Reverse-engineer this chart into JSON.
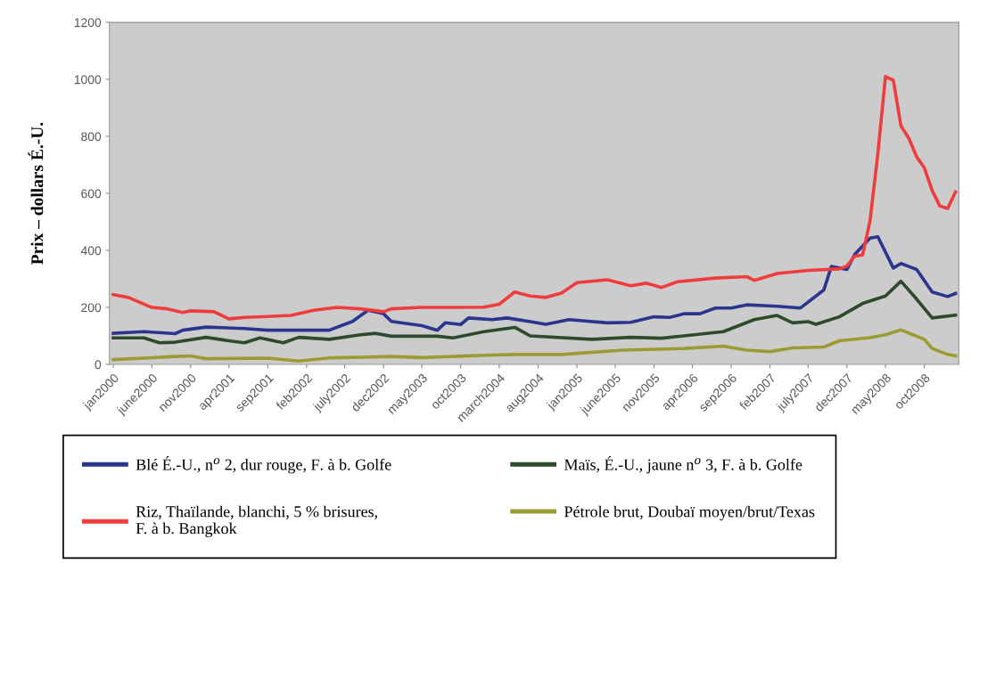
{
  "chart_data": {
    "type": "line",
    "ylabel": "Prix – dollars É.-U.",
    "xlim": [
      "1999-12-17",
      "2009-02-14"
    ],
    "ylim": [
      0,
      1200
    ],
    "yticks": [
      0,
      200,
      400,
      600,
      800,
      1000,
      1200
    ],
    "xticks": [
      {
        "value": "2000-01",
        "label": "jan2000"
      },
      {
        "value": "2000-06",
        "label": "june2000"
      },
      {
        "value": "2000-11",
        "label": "nov2000"
      },
      {
        "value": "2001-04",
        "label": "apr2001"
      },
      {
        "value": "2001-09",
        "label": "sep2001"
      },
      {
        "value": "2002-02",
        "label": "feb2002"
      },
      {
        "value": "2002-07",
        "label": "july2002"
      },
      {
        "value": "2002-12",
        "label": "dec2002"
      },
      {
        "value": "2003-05",
        "label": "may2003"
      },
      {
        "value": "2003-10",
        "label": "oct2003"
      },
      {
        "value": "2004-03",
        "label": "march2004"
      },
      {
        "value": "2004-08",
        "label": "aug2004"
      },
      {
        "value": "2005-01",
        "label": "jan2005"
      },
      {
        "value": "2005-06",
        "label": "june2005"
      },
      {
        "value": "2005-11",
        "label": "nov2005"
      },
      {
        "value": "2006-04",
        "label": "apr2006"
      },
      {
        "value": "2006-09",
        "label": "sep2006"
      },
      {
        "value": "2007-02",
        "label": "feb2007"
      },
      {
        "value": "2007-07",
        "label": "july2007"
      },
      {
        "value": "2007-12",
        "label": "dec2007"
      },
      {
        "value": "2008-05",
        "label": "may2008"
      },
      {
        "value": "2008-10",
        "label": "oct2008"
      }
    ],
    "grid": false,
    "legend": "bottom",
    "marker": "none",
    "line_style": "solid",
    "series": [
      {
        "name": "Blé É.-U., n$^{o}$ 2, dur rouge, F. à b. Golfe",
        "color": "#2b3590",
        "x": [
          "2000-01",
          "2000-05",
          "2000-09",
          "2000-10",
          "2001-01",
          "2001-06",
          "2001-09",
          "2002-01",
          "2002-05",
          "2002-08",
          "2002-10",
          "2002-12",
          "2003-01",
          "2003-05",
          "2003-07",
          "2003-08",
          "2003-10",
          "2003-11",
          "2004-02",
          "2004-04",
          "2004-07",
          "2004-09",
          "2004-12",
          "2005-05",
          "2005-08",
          "2005-11",
          "2006-01",
          "2006-03",
          "2006-05",
          "2006-07",
          "2006-09",
          "2006-11",
          "2007-03",
          "2007-06",
          "2007-09",
          "2007-10",
          "2007-12",
          "2008-01",
          "2008-03",
          "2008-04",
          "2008-06",
          "2008-07",
          "2008-09",
          "2008-11",
          "2009-01",
          "2009-02"
        ],
        "values": [
          109,
          115,
          108,
          120,
          131,
          126,
          120,
          120,
          120,
          151,
          190,
          178,
          151,
          136,
          120,
          146,
          140,
          163,
          157,
          163,
          150,
          141,
          157,
          146,
          148,
          167,
          165,
          178,
          178,
          198,
          198,
          209,
          204,
          198,
          261,
          344,
          333,
          386,
          443,
          448,
          338,
          354,
          333,
          254,
          238,
          249
        ]
      },
      {
        "name": "Riz, Thaïlande, blanchi, 5 % brisures,\nF. à b. Bangkok",
        "color": "#f03c3c",
        "x": [
          "2000-01",
          "2000-03",
          "2000-06",
          "2000-08",
          "2000-10",
          "2000-11",
          "2001-02",
          "2001-04",
          "2001-06",
          "2001-09",
          "2001-12",
          "2002-03",
          "2002-06",
          "2002-09",
          "2002-12",
          "2003-01",
          "2003-05",
          "2003-09",
          "2004-01",
          "2004-03",
          "2004-05",
          "2004-07",
          "2004-09",
          "2004-11",
          "2005-01",
          "2005-05",
          "2005-08",
          "2005-10",
          "2005-12",
          "2006-02",
          "2006-07",
          "2006-11",
          "2006-12",
          "2007-03",
          "2007-07",
          "2007-11",
          "2007-12",
          "2008-01",
          "2008-02",
          "2008-03",
          "2008-04",
          "2008-05",
          "2008-06",
          "2008-07",
          "2008-08",
          "2008-09",
          "2008-10",
          "2008-11",
          "2008-12",
          "2009-01",
          "2009-02"
        ],
        "values": [
          245,
          235,
          200,
          195,
          182,
          188,
          185,
          160,
          165,
          168,
          172,
          190,
          200,
          195,
          185,
          195,
          200,
          200,
          201,
          211,
          254,
          240,
          235,
          250,
          287,
          297,
          276,
          285,
          270,
          290,
          303,
          308,
          295,
          319,
          330,
          335,
          345,
          380,
          384,
          503,
          740,
          1010,
          997,
          837,
          793,
          728,
          690,
          610,
          556,
          547,
          605
        ]
      },
      {
        "name": "Maïs, É.-U., jaune n$^{o}$ 3, F. à b. Golfe",
        "color": "#2d4a2d",
        "x": [
          "2000-01",
          "2000-05",
          "2000-07",
          "2000-09",
          "2001-01",
          "2001-04",
          "2001-06",
          "2001-08",
          "2001-11",
          "2002-01",
          "2002-05",
          "2002-09",
          "2002-11",
          "2003-01",
          "2003-07",
          "2003-09",
          "2004-01",
          "2004-05",
          "2004-07",
          "2005-03",
          "2005-08",
          "2005-12",
          "2006-08",
          "2006-12",
          "2007-03",
          "2007-05",
          "2007-07",
          "2007-08",
          "2007-11",
          "2008-02",
          "2008-05",
          "2008-07",
          "2008-09",
          "2008-11",
          "2009-02"
        ],
        "values": [
          93,
          93,
          76,
          78,
          95,
          83,
          76,
          93,
          76,
          95,
          88,
          104,
          109,
          99,
          99,
          93,
          115,
          130,
          100,
          88,
          95,
          92,
          115,
          157,
          172,
          146,
          150,
          141,
          167,
          214,
          240,
          292,
          229,
          163,
          173
        ]
      },
      {
        "name": "Pétrole brut, Doubaï moyen/brut/Texas",
        "color": "#9c9a32",
        "x": [
          "2000-01",
          "2000-05",
          "2000-09",
          "2000-11",
          "2001-01",
          "2001-09",
          "2002-01",
          "2002-05",
          "2002-09",
          "2003-01",
          "2003-05",
          "2004-01",
          "2004-05",
          "2004-11",
          "2005-07",
          "2006-03",
          "2006-08",
          "2006-11",
          "2007-02",
          "2007-05",
          "2007-09",
          "2007-11",
          "2008-03",
          "2008-05",
          "2008-07",
          "2008-10",
          "2008-11",
          "2009-01",
          "2009-02"
        ],
        "values": [
          17,
          22,
          28,
          30,
          20,
          22,
          12,
          23,
          25,
          28,
          24,
          32,
          35,
          35,
          50,
          56,
          64,
          50,
          45,
          58,
          61,
          83,
          94,
          104,
          121,
          88,
          56,
          35,
          30
        ]
      }
    ]
  }
}
